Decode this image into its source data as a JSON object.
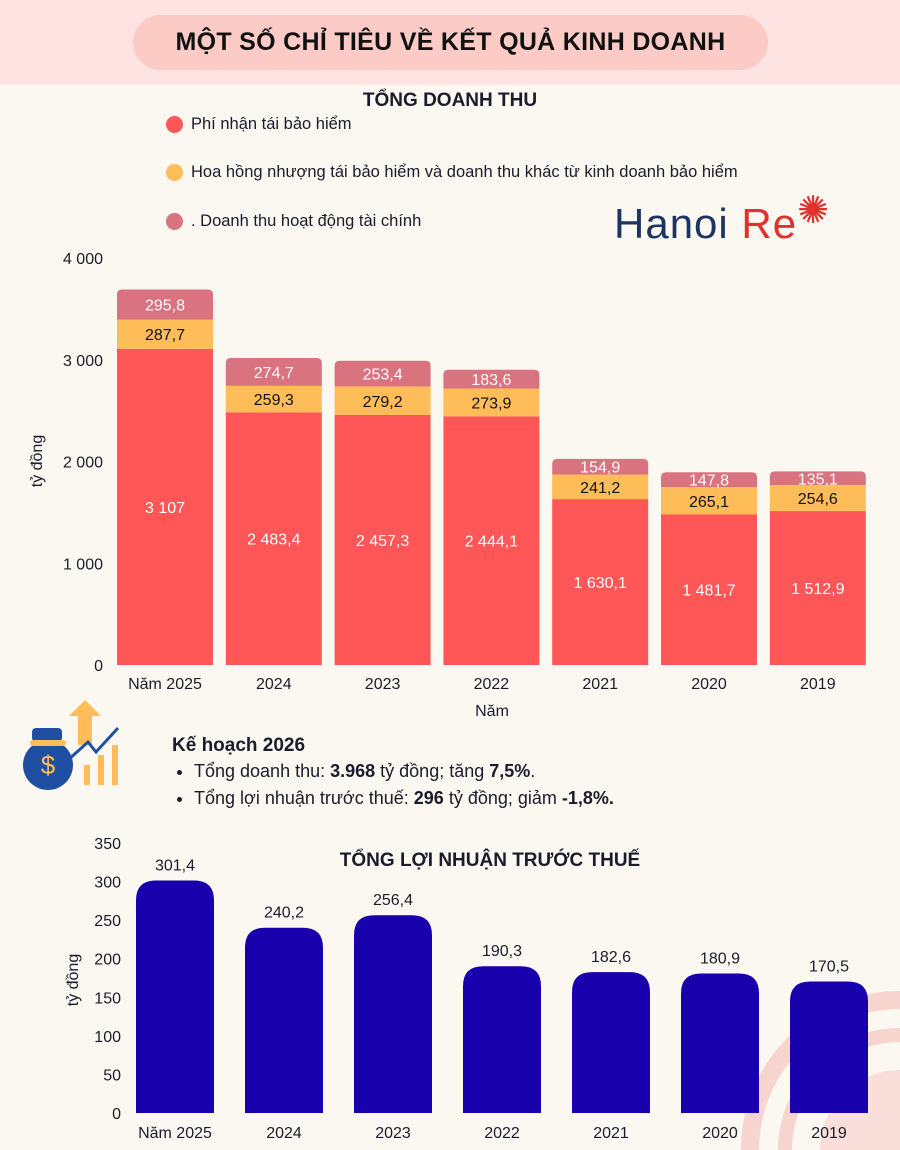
{
  "header": {
    "title": "MỘT SỐ CHỈ TIÊU VỀ KẾT QUẢ KINH DOANH"
  },
  "logo": {
    "text_a": "Hanoi",
    "text_b": "Re"
  },
  "plan": {
    "title": "Kế hoạch 2026",
    "items": [
      {
        "a": "Tổng doanh thu: ",
        "b": "3.968",
        "c": " tỷ đồng; tăng ",
        "d": "7,5%",
        "e": "."
      },
      {
        "a": "Tổng lợi nhuận trước thuế: ",
        "b": "296",
        "c": " tỷ đồng; giảm ",
        "d": "-1,8%.",
        "e": ""
      }
    ]
  },
  "colors": {
    "premium": "#ff5757",
    "commission": "#ffbd59",
    "financial": "#d8737f",
    "profit": "#1800ad"
  },
  "chart_data": [
    {
      "type": "bar",
      "stacked": true,
      "title": "TỔNG DOANH THU",
      "xlabel": "Năm",
      "ylabel": "tỷ đồng",
      "ylim": [
        0,
        4000
      ],
      "yticks": [
        "0",
        "1 000",
        "2 000",
        "3 000",
        "4 000"
      ],
      "ytick_values": [
        0,
        1000,
        2000,
        3000,
        4000
      ],
      "legend": "top",
      "categories": [
        "Năm 2025",
        "2024",
        "2023",
        "2022",
        "2021",
        "2020",
        "2019"
      ],
      "series": [
        {
          "name": "Phí nhận tái bảo hiểm",
          "color": "#ff5757",
          "values": [
            3107,
            2483.4,
            2457.3,
            2444.1,
            1630.1,
            1481.7,
            1512.9
          ],
          "labels": [
            "3 107",
            "2 483,4",
            "2 457,3",
            "2 444,1",
            "1 630,1",
            "1 481,7",
            "1 512,9"
          ]
        },
        {
          "name": "Hoa hồng nhượng tái bảo hiểm và doanh thu khác từ kinh doanh bảo hiểm",
          "color": "#ffbd59",
          "values": [
            287.7,
            259.3,
            279.2,
            273.9,
            241.2,
            265.1,
            254.6
          ],
          "labels": [
            "287,7",
            "259,3",
            "279,2",
            "273,9",
            "241,2",
            "265,1",
            "254,6"
          ]
        },
        {
          "name": ". Doanh thu hoạt động tài chính",
          "color": "#d8737f",
          "values": [
            295.8,
            274.7,
            253.4,
            183.6,
            154.9,
            147.8,
            135.1
          ],
          "labels": [
            "295,8",
            "274,7",
            "253,4",
            "183,6",
            "154,9",
            "147,8",
            "135,1"
          ]
        }
      ]
    },
    {
      "type": "bar",
      "title": "TỔNG LỢI NHUẬN TRƯỚC THUẾ",
      "ylabel": "tỷ đồng",
      "ylim": [
        0,
        350
      ],
      "yticks": [
        "0",
        "50",
        "100",
        "150",
        "200",
        "250",
        "300",
        "350"
      ],
      "ytick_values": [
        0,
        50,
        100,
        150,
        200,
        250,
        300,
        350
      ],
      "categories": [
        "Năm 2025",
        "2024",
        "2023",
        "2022",
        "2021",
        "2020",
        "2019"
      ],
      "values": [
        301.4,
        240.2,
        256.4,
        190.3,
        182.6,
        180.9,
        170.5
      ],
      "labels": [
        "301,4",
        "240,2",
        "256,4",
        "190,3",
        "182,6",
        "180,9",
        "170,5"
      ]
    }
  ]
}
